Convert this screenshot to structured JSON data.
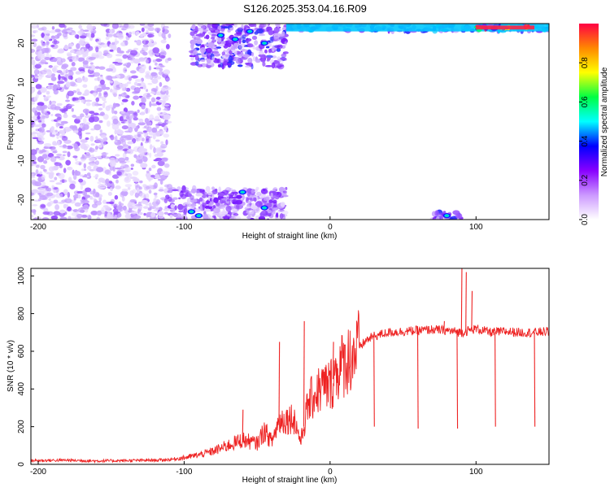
{
  "title": "S126.2025.353.04.16.R09",
  "chart_data": [
    {
      "type": "heatmap",
      "xlabel": "Height of straight line (km)",
      "ylabel": "Frequency (Hz)",
      "xlim": [
        -205,
        150
      ],
      "ylim": [
        -25,
        25
      ],
      "xticks": [
        -200,
        -100,
        0,
        100
      ],
      "yticks": [
        -20,
        -10,
        0,
        10,
        20
      ],
      "grid": false,
      "colorbar": {
        "label": "Normalized spectral amplitude",
        "ticks": [
          0.0,
          0.2,
          0.4,
          0.6,
          0.8
        ],
        "range": [
          0,
          1
        ],
        "colors": [
          "#ffffff",
          "#cc99ff",
          "#8800ff",
          "#0000ff",
          "#00ffff",
          "#00ff44",
          "#ffff00",
          "#ff8800",
          "#ff0044"
        ]
      },
      "regions": [
        {
          "x_range": [
            -205,
            -110
          ],
          "y_range": [
            -25,
            25
          ],
          "amplitude": 0.2
        },
        {
          "x_range": [
            -95,
            -30
          ],
          "y_range": [
            14,
            25
          ],
          "amplitude": 0.35
        },
        {
          "x_range": [
            -110,
            -30
          ],
          "y_range": [
            -25,
            -17
          ],
          "amplitude": 0.3
        },
        {
          "x_range": [
            -30,
            150
          ],
          "y_range": [
            23,
            25
          ],
          "amplitude": 0.5
        },
        {
          "x_range": [
            100,
            140
          ],
          "y_range": [
            23.5,
            24.5
          ],
          "amplitude": 0.95
        },
        {
          "x_range": [
            70,
            90
          ],
          "y_range": [
            -25,
            -23
          ],
          "amplitude": 0.4
        }
      ]
    },
    {
      "type": "line",
      "xlabel": "Height of straight line (km)",
      "ylabel": "SNR (10 * v/v)",
      "xlim": [
        -205,
        150
      ],
      "ylim": [
        0,
        1040
      ],
      "xticks": [
        -200,
        -100,
        0,
        100
      ],
      "yticks": [
        0,
        200,
        400,
        600,
        800,
        1000
      ],
      "grid": false,
      "series": [
        {
          "color": "#ee2222",
          "x": [
            -205,
            -180,
            -160,
            -140,
            -120,
            -110,
            -100,
            -90,
            -80,
            -70,
            -60,
            -50,
            -45,
            -40,
            -35,
            -30,
            -25,
            -20,
            -15,
            -10,
            -5,
            0,
            5,
            10,
            15,
            20,
            25,
            30,
            40,
            50,
            60,
            70,
            80,
            90,
            100,
            110,
            120,
            130,
            140,
            150
          ],
          "y": [
            20,
            22,
            18,
            20,
            22,
            25,
            35,
            50,
            70,
            100,
            130,
            110,
            180,
            120,
            230,
            240,
            250,
            120,
            320,
            380,
            410,
            420,
            500,
            540,
            580,
            620,
            660,
            680,
            700,
            705,
            710,
            715,
            710,
            700,
            720,
            700,
            705,
            700,
            700,
            705
          ]
        }
      ],
      "spikes": [
        {
          "x": -60,
          "y": 290
        },
        {
          "x": -35,
          "y": 650
        },
        {
          "x": -18,
          "y": 760
        },
        {
          "x": 2,
          "y": 650
        },
        {
          "x": 30,
          "y": 200
        },
        {
          "x": 60,
          "y": 190
        },
        {
          "x": 78,
          "y": 760
        },
        {
          "x": 87,
          "y": 190
        },
        {
          "x": 90,
          "y": 1040
        },
        {
          "x": 93,
          "y": 1020
        },
        {
          "x": 97,
          "y": 920
        },
        {
          "x": 113,
          "y": 200
        },
        {
          "x": 140,
          "y": 200
        }
      ]
    }
  ]
}
